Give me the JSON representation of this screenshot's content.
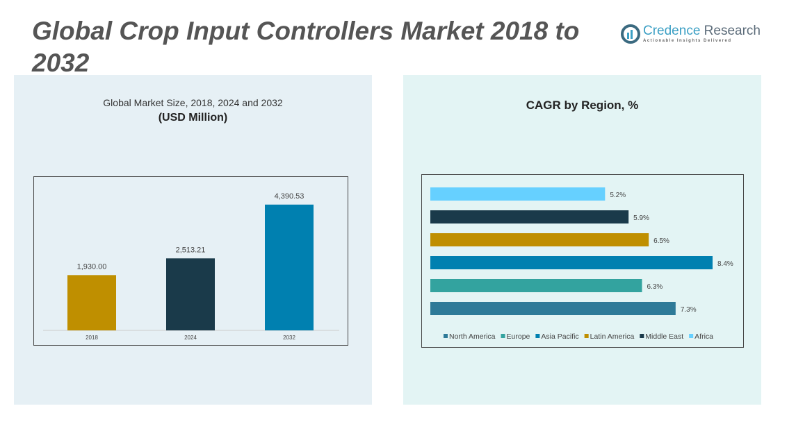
{
  "title": "Global Crop Input Controllers Market 2018 to 2032",
  "logo": {
    "name_part1": "Credence",
    "name_part2": " Research",
    "tagline": "Actionable Insights Delivered"
  },
  "left_chart_subtitle": "Global Market Size, 2018, 2024 and 2032",
  "left_chart_unit": "(USD Million)",
  "right_chart_title": "CAGR by Region, %",
  "chart_data": [
    {
      "type": "bar",
      "title": "Global Market Size, 2018, 2024 and 2032",
      "ylabel": "(USD Million)",
      "categories": [
        "2018",
        "2024",
        "2032"
      ],
      "values": [
        1930.0,
        2513.21,
        4390.53
      ],
      "labels": [
        "1,930.00",
        "2,513.21",
        "4,390.53"
      ],
      "colors": [
        "#bf8f00",
        "#1a3a4a",
        "#0080b0"
      ],
      "ylim": [
        0,
        4700
      ],
      "grid": false
    },
    {
      "type": "bar",
      "orientation": "horizontal",
      "title": "CAGR by Region, %",
      "series": [
        {
          "name": "North America",
          "value": 7.3,
          "label": "7.3%",
          "color": "#2e7a98"
        },
        {
          "name": "Europe",
          "value": 6.3,
          "label": "6.3%",
          "color": "#33a39f"
        },
        {
          "name": "Asia Pacific",
          "value": 8.4,
          "label": "8.4%",
          "color": "#0080b0"
        },
        {
          "name": "Latin America",
          "value": 6.5,
          "label": "6.5%",
          "color": "#bf8f00"
        },
        {
          "name": "Middle East",
          "value": 5.9,
          "label": "5.9%",
          "color": "#1a3a4a"
        },
        {
          "name": "Africa",
          "value": 5.2,
          "label": "5.2%",
          "color": "#66d0ff"
        }
      ],
      "legend": "bottom",
      "grid": false
    }
  ]
}
